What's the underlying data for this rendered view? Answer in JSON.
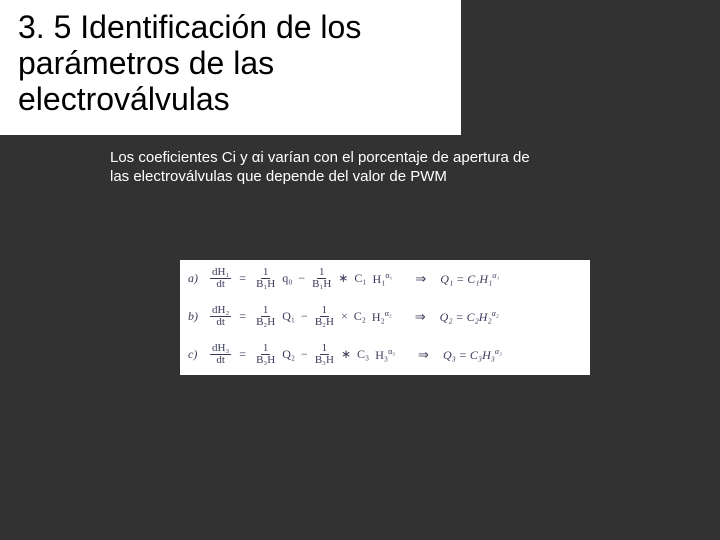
{
  "slide": {
    "section_number": "3. 5",
    "title_rest": "Identificación de los parámetros de las electroválvulas",
    "body_text": "Los coeficientes   Ci   y   αi varían con el porcentaje de apertura de las electroválvulas que depende del valor de PWM",
    "bg_color": "#323232",
    "title_bg": "#ffffff",
    "title_color": "#000000",
    "body_color": "#ffffff",
    "title_fontsize": 32,
    "body_fontsize": 15
  },
  "equations": {
    "panel_bg": "#ffffff",
    "text_color": "#3a3a5a",
    "fontsize": 12,
    "rows": [
      {
        "label": "a)",
        "dH": "dH₁",
        "dt": "dt",
        "coef1_num": "1",
        "coef1_den": "B₁H",
        "q_in": "q₀",
        "coef2_num": "1",
        "coef2_den": "B₁H",
        "C": "C₁",
        "Hterm": "H₁",
        "alpha": "α₁",
        "result_lhs": "Q₁",
        "result_rhs": "C₁H₁",
        "result_alpha": "α₁"
      },
      {
        "label": "b)",
        "dH": "dH₂",
        "dt": "dt",
        "coef1_num": "1",
        "coef1_den": "B₂H",
        "q_in": "Q₁",
        "coef2_num": "1",
        "coef2_den": "B₂H",
        "C": "C₂",
        "Hterm": "H₂",
        "alpha": "α₂",
        "result_lhs": "Q₂",
        "result_rhs": "C₂H₂",
        "result_alpha": "α₂"
      },
      {
        "label": "c)",
        "dH": "dH₃",
        "dt": "dt",
        "coef1_num": "1",
        "coef1_den": "B₃H",
        "q_in": "Q₂",
        "coef2_num": "1",
        "coef2_den": "B₃H",
        "C": "C₃",
        "Hterm": "H₃",
        "alpha": "α₃",
        "result_lhs": "Q₃",
        "result_rhs": "C₃H₃",
        "result_alpha": "α₃"
      }
    ]
  }
}
